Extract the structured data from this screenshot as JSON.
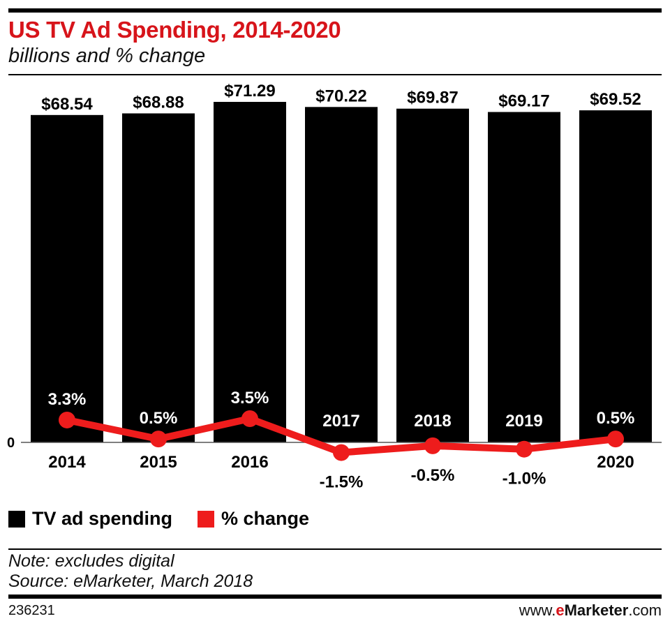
{
  "header": {
    "title": "US TV Ad Spending, 2014-2020",
    "subtitle": "billions and % change"
  },
  "colors": {
    "accent": "#d7141a",
    "bars": "#000000",
    "line": "#ee1c1c"
  },
  "chart_data": {
    "type": "bar",
    "title": "US TV Ad Spending, 2014-2020",
    "subtitle": "billions and % change",
    "categories": [
      "2014",
      "2015",
      "2016",
      "2017",
      "2018",
      "2019",
      "2020"
    ],
    "series": [
      {
        "name": "TV ad spending",
        "type": "bar",
        "unit": "billions USD",
        "values": [
          68.54,
          68.88,
          71.29,
          70.22,
          69.87,
          69.17,
          69.52
        ],
        "labels": [
          "$68.54",
          "$68.88",
          "$71.29",
          "$70.22",
          "$69.87",
          "$69.17",
          "$69.52"
        ]
      },
      {
        "name": "% change",
        "type": "line",
        "unit": "%",
        "values": [
          3.3,
          0.5,
          3.5,
          -1.5,
          -0.5,
          -1.0,
          0.5
        ],
        "labels": [
          "3.3%",
          "0.5%",
          "3.5%",
          "-1.5%",
          "-0.5%",
          "-1.0%",
          "0.5%"
        ]
      }
    ],
    "zero_label": "0",
    "grid": false,
    "legend_position": "bottom-left"
  },
  "legend": [
    {
      "label": "TV ad spending",
      "color": "#000000"
    },
    {
      "label": "% change",
      "color": "#ee1c1c"
    }
  ],
  "footer": {
    "note": "Note: excludes digital",
    "source": "Source: eMarketer, March 2018",
    "chart_id": "236231",
    "brand_prefix": "www.",
    "brand_e": "e",
    "brand_name": "Marketer",
    "brand_suffix": ".com"
  }
}
